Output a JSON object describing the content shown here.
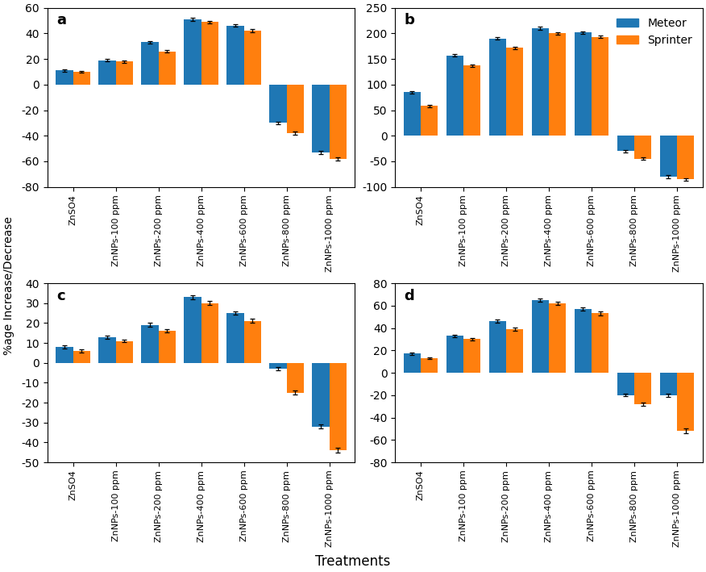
{
  "xlabel": "Treatments",
  "ylabel": "%age Increase/Decrease",
  "chart_data": [
    {
      "type": "bar",
      "annotation": "a",
      "categories": [
        "ZnSO4",
        "ZnNPs-100 ppm",
        "ZnNPs-200 ppm",
        "ZnNPs-400 ppm",
        "ZnNPs-600 ppm",
        "ZnNPs-800 ppm",
        "ZnNPs-1000 ppm"
      ],
      "series": [
        {
          "name": "Meteor",
          "values": [
            11,
            19,
            33,
            51,
            46,
            -30,
            -53
          ],
          "errors": [
            1.0,
            1.0,
            1.2,
            1.2,
            1.0,
            1.0,
            1.2
          ]
        },
        {
          "name": "Sprinter",
          "values": [
            10,
            18,
            26,
            49,
            42,
            -38,
            -58
          ],
          "errors": [
            0.8,
            0.8,
            1.0,
            1.0,
            1.2,
            1.2,
            1.2
          ]
        }
      ],
      "ylim": [
        -80,
        60
      ],
      "yticks": [
        -80,
        -60,
        -40,
        -20,
        0,
        20,
        40,
        60
      ]
    },
    {
      "type": "bar",
      "annotation": "b",
      "legend": "upper right",
      "categories": [
        "ZnSO4",
        "ZnNPs-100 ppm",
        "ZnNPs-200 ppm",
        "ZnNPs-400 ppm",
        "ZnNPs-600 ppm",
        "ZnNPs-800 ppm",
        "ZnNPs-1000 ppm"
      ],
      "series": [
        {
          "name": "Meteor",
          "values": [
            85,
            157,
            190,
            210,
            202,
            -30,
            -80
          ],
          "errors": [
            2.0,
            2.5,
            2.5,
            2.5,
            2.5,
            2.0,
            2.5
          ]
        },
        {
          "name": "Sprinter",
          "values": [
            58,
            137,
            172,
            200,
            193,
            -45,
            -85
          ],
          "errors": [
            2.0,
            2.5,
            2.5,
            2.5,
            2.5,
            2.5,
            2.5
          ]
        }
      ],
      "ylim": [
        -100,
        250
      ],
      "yticks": [
        -100,
        -50,
        0,
        50,
        100,
        150,
        200,
        250
      ]
    },
    {
      "type": "bar",
      "annotation": "c",
      "categories": [
        "ZnSO4",
        "ZnNPs-100 ppm",
        "ZnNPs-200 ppm",
        "ZnNPs-400 ppm",
        "ZnNPs-600 ppm",
        "ZnNPs-800 ppm",
        "ZnNPs-1000 ppm"
      ],
      "series": [
        {
          "name": "Meteor",
          "values": [
            8,
            13,
            19,
            33,
            25,
            -3,
            -32
          ],
          "errors": [
            0.8,
            0.8,
            1.0,
            1.0,
            1.0,
            0.8,
            1.0
          ]
        },
        {
          "name": "Sprinter",
          "values": [
            6,
            11,
            16,
            30,
            21,
            -15,
            -44
          ],
          "errors": [
            0.7,
            0.7,
            0.8,
            1.0,
            1.0,
            1.0,
            1.2
          ]
        }
      ],
      "ylim": [
        -50,
        40
      ],
      "yticks": [
        -50,
        -40,
        -30,
        -20,
        -10,
        0,
        10,
        20,
        30,
        40
      ]
    },
    {
      "type": "bar",
      "annotation": "d",
      "categories": [
        "ZnSO4",
        "ZnNPs-100 ppm",
        "ZnNPs-200 ppm",
        "ZnNPs-400 ppm",
        "ZnNPs-600 ppm",
        "ZnNPs-800 ppm",
        "ZnNPs-1000 ppm"
      ],
      "series": [
        {
          "name": "Meteor",
          "values": [
            17,
            33,
            46,
            65,
            57,
            -20,
            -20
          ],
          "errors": [
            1.2,
            1.2,
            1.5,
            1.5,
            1.5,
            1.2,
            1.5
          ]
        },
        {
          "name": "Sprinter",
          "values": [
            13,
            30,
            39,
            62,
            53,
            -28,
            -52
          ],
          "errors": [
            1.0,
            1.2,
            1.5,
            1.5,
            1.5,
            1.5,
            2.0
          ]
        }
      ],
      "ylim": [
        -80,
        80
      ],
      "yticks": [
        -80,
        -60,
        -40,
        -20,
        0,
        20,
        40,
        60,
        80
      ]
    }
  ]
}
